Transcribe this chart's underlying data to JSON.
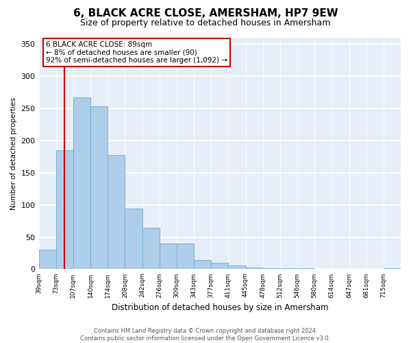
{
  "title": "6, BLACK ACRE CLOSE, AMERSHAM, HP7 9EW",
  "subtitle": "Size of property relative to detached houses in Amersham",
  "xlabel": "Distribution of detached houses by size in Amersham",
  "ylabel": "Number of detached properties",
  "bin_labels": [
    "39sqm",
    "73sqm",
    "107sqm",
    "140sqm",
    "174sqm",
    "208sqm",
    "242sqm",
    "276sqm",
    "309sqm",
    "343sqm",
    "377sqm",
    "411sqm",
    "445sqm",
    "478sqm",
    "512sqm",
    "546sqm",
    "580sqm",
    "614sqm",
    "647sqm",
    "681sqm",
    "715sqm"
  ],
  "bar_heights": [
    30,
    185,
    267,
    253,
    178,
    94,
    64,
    40,
    40,
    14,
    10,
    6,
    3,
    2,
    1,
    1,
    0,
    0,
    0,
    0,
    1
  ],
  "bar_color": "#aecde8",
  "bar_edge_color": "#6aaed6",
  "marker_color": "#cc0000",
  "ylim": [
    0,
    360
  ],
  "yticks": [
    0,
    50,
    100,
    150,
    200,
    250,
    300,
    350
  ],
  "annotation_line1": "6 BLACK ACRE CLOSE: 89sqm",
  "annotation_line2": "← 8% of detached houses are smaller (90)",
  "annotation_line3": "92% of semi-detached houses are larger (1,092) →",
  "annotation_box_color": "#ffffff",
  "annotation_box_edge": "#cc0000",
  "footer_line1": "Contains HM Land Registry data © Crown copyright and database right 2024.",
  "footer_line2": "Contains public sector information licensed under the Open Government Licence v3.0.",
  "bg_color": "#e8eef8",
  "title_fontsize": 11,
  "subtitle_fontsize": 9
}
